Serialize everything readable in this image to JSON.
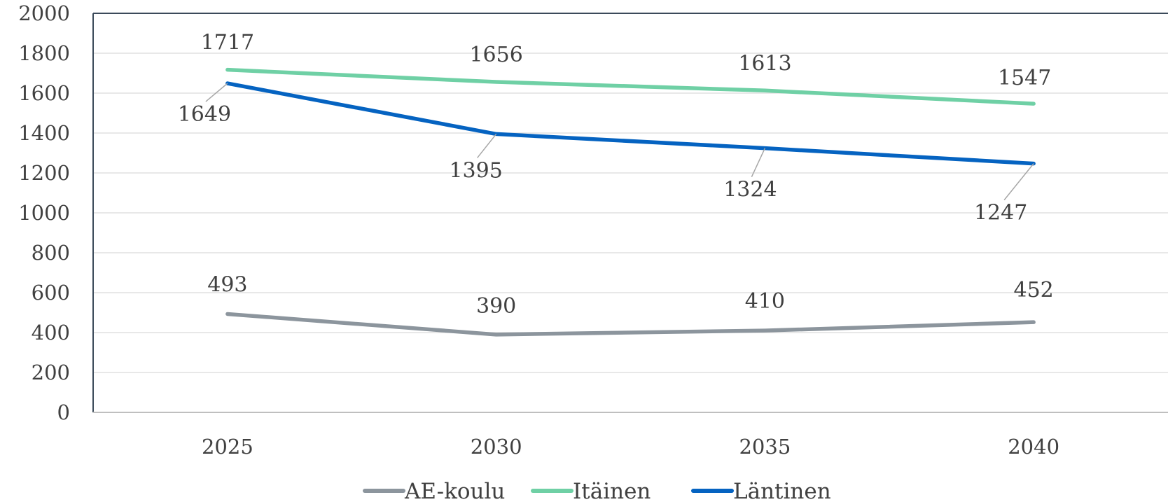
{
  "chart_data": {
    "type": "line",
    "title": "",
    "xlabel": "",
    "ylabel": "",
    "categories": [
      "2025",
      "2030",
      "2035",
      "2040"
    ],
    "ylim": [
      0,
      2000
    ],
    "yticks": [
      0,
      200,
      400,
      600,
      800,
      1000,
      1200,
      1400,
      1600,
      1800,
      2000
    ],
    "grid": true,
    "legend_position": "bottom",
    "series": [
      {
        "name": "AE-koulu",
        "color": "#8c959d",
        "values": [
          493,
          390,
          410,
          452
        ]
      },
      {
        "name": "Itäinen",
        "color": "#6fd0a5",
        "values": [
          1717,
          1656,
          1613,
          1547
        ]
      },
      {
        "name": "Läntinen",
        "color": "#0563c1",
        "values": [
          1649,
          1395,
          1324,
          1247
        ]
      }
    ]
  }
}
